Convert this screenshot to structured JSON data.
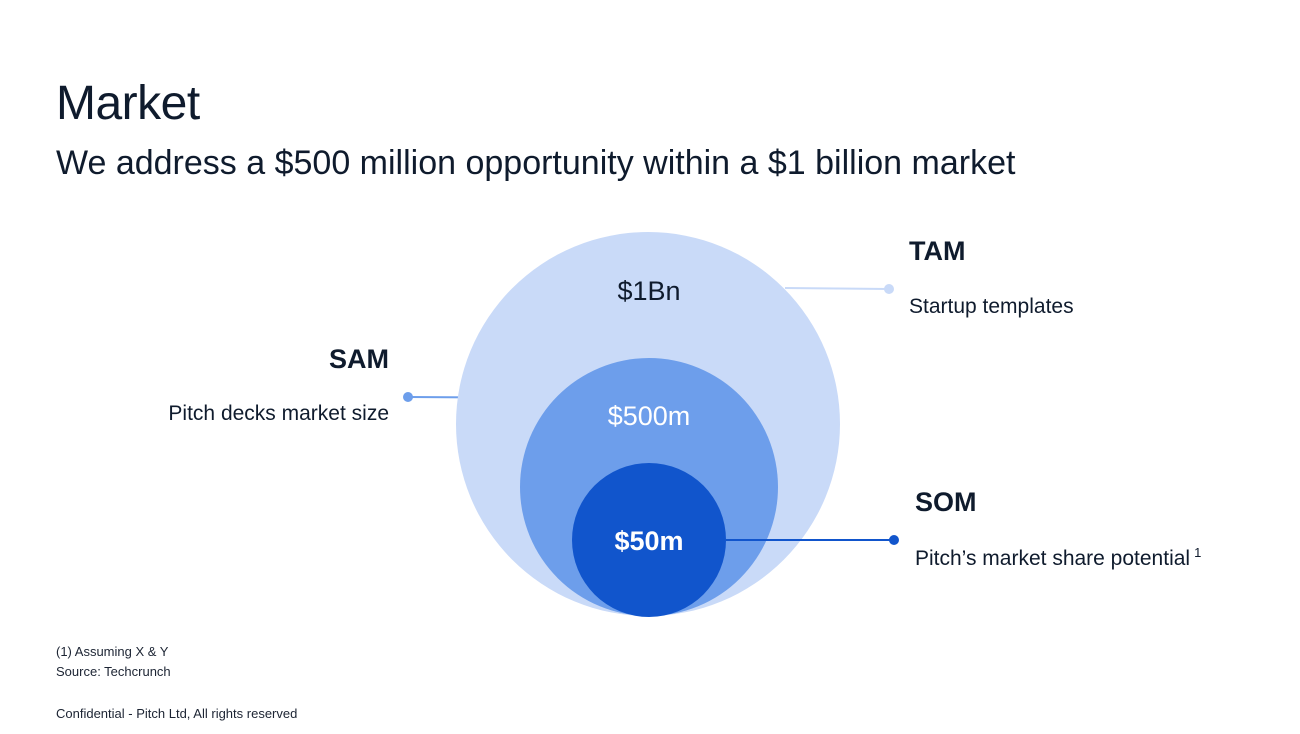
{
  "slide": {
    "title": "Market",
    "subtitle": "We address a $500 million opportunity within a $1 billion market"
  },
  "circles": {
    "tam": {
      "value": "$1Bn",
      "heading": "TAM",
      "description": "Startup templates",
      "color": "#c9daf8"
    },
    "sam": {
      "value": "$500m",
      "heading": "SAM",
      "description": "Pitch decks market size",
      "color": "#6d9eeb"
    },
    "som": {
      "value": "$50m",
      "heading": "SOM",
      "description": "Pitch’s market share potential",
      "footnote_marker": "1",
      "color": "#1155cc"
    }
  },
  "footer": {
    "note": "(1) Assuming X & Y",
    "source": "Source: Techcrunch",
    "confidential": "Confidential - Pitch Ltd, All rights reserved"
  }
}
